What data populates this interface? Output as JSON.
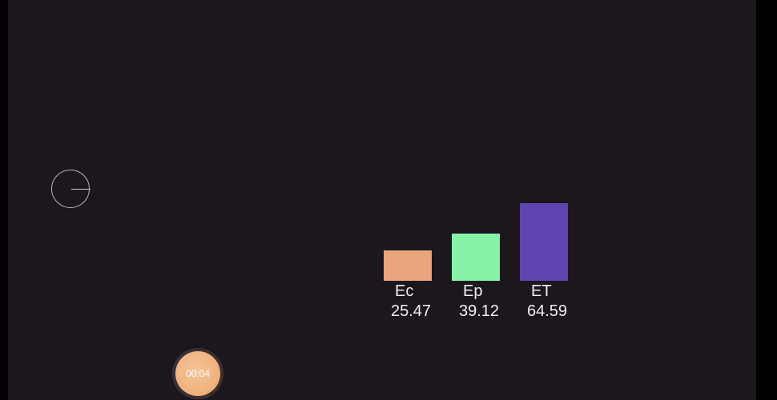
{
  "chart_data": {
    "type": "bar",
    "categories": [
      "Ec",
      "Ep",
      "ET"
    ],
    "values": [
      25.47,
      39.12,
      64.59
    ],
    "value_labels": [
      "25.47",
      "39.12",
      "64.59"
    ],
    "colors": [
      "#e8a57e",
      "#86f2a8",
      "#5e44b0"
    ]
  },
  "timer": {
    "label": "00:04"
  },
  "icons": {
    "dial": "dial-icon"
  }
}
